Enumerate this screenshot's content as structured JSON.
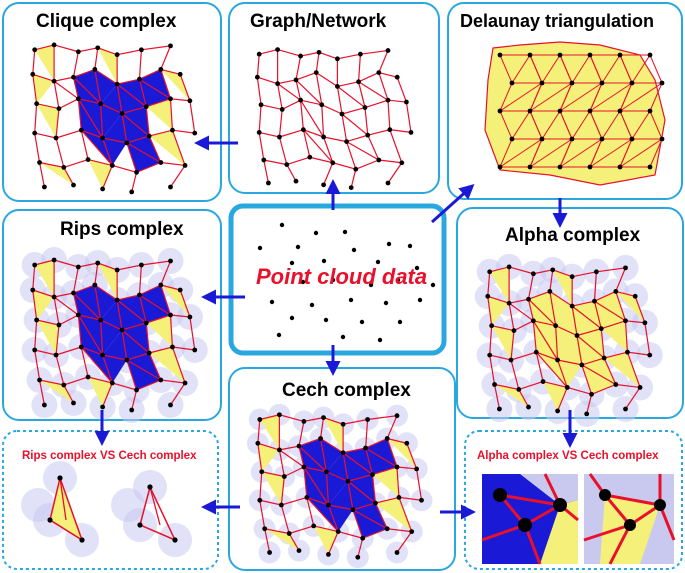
{
  "colors": {
    "panel_border": "#29a8df",
    "edge": "#e8102a",
    "blue_fill": "#1a1ad6",
    "yellow_fill": "#f5f07a",
    "node": "#000000",
    "ball": "#c9c9f0",
    "arrow": "#1a1ad6",
    "title_red": "#e8102a"
  },
  "panels": {
    "clique": {
      "title": "Clique complex"
    },
    "graph": {
      "title": "Graph/Network"
    },
    "delaunay": {
      "title": "Delaunay triangulation"
    },
    "rips": {
      "title": "Rips complex"
    },
    "center": {
      "title": "Point cloud data"
    },
    "alpha": {
      "title": "Alpha complex"
    },
    "rips_vs_cech": {
      "title": "Rips complex VS Cech complex"
    },
    "cech": {
      "title": "Cech complex"
    },
    "alpha_vs_cech": {
      "title": "Alpha complex VS Cech complex"
    }
  }
}
